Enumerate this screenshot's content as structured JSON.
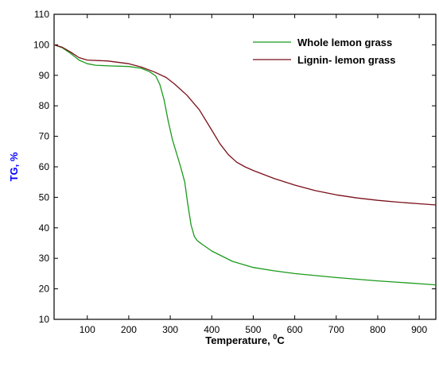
{
  "chart_data": {
    "type": "line",
    "xlabel": "Temperature, ",
    "xlabel_sup": "0",
    "xlabel_unit": "C",
    "ylabel": "TG, %",
    "xlim": [
      20,
      940
    ],
    "ylim": [
      10,
      110
    ],
    "x_ticks": [
      100,
      200,
      300,
      400,
      500,
      600,
      700,
      800,
      900
    ],
    "y_ticks": [
      10,
      20,
      30,
      40,
      50,
      60,
      70,
      80,
      90,
      100,
      110
    ],
    "legend_position": "top-right",
    "grid": false,
    "series": [
      {
        "name": "Whole lemon grass",
        "color": "#1a9a1a",
        "points": [
          [
            20,
            100
          ],
          [
            40,
            99
          ],
          [
            60,
            97.2
          ],
          [
            80,
            95
          ],
          [
            100,
            93.8
          ],
          [
            120,
            93.3
          ],
          [
            150,
            93.1
          ],
          [
            200,
            92.9
          ],
          [
            230,
            92.3
          ],
          [
            250,
            91.2
          ],
          [
            265,
            89.8
          ],
          [
            275,
            87
          ],
          [
            285,
            82
          ],
          [
            295,
            75
          ],
          [
            305,
            69
          ],
          [
            315,
            64.5
          ],
          [
            325,
            60
          ],
          [
            335,
            55
          ],
          [
            342,
            48
          ],
          [
            350,
            41
          ],
          [
            358,
            37.2
          ],
          [
            365,
            35.8
          ],
          [
            375,
            34.8
          ],
          [
            400,
            32.4
          ],
          [
            450,
            29
          ],
          [
            500,
            27
          ],
          [
            550,
            25.9
          ],
          [
            600,
            25
          ],
          [
            700,
            23.7
          ],
          [
            800,
            22.6
          ],
          [
            900,
            21.7
          ],
          [
            940,
            21.3
          ]
        ]
      },
      {
        "name": "Lignin- lemon grass",
        "color": "#7a0f1a",
        "points": [
          [
            20,
            100
          ],
          [
            40,
            99.2
          ],
          [
            60,
            97.6
          ],
          [
            80,
            95.8
          ],
          [
            100,
            95
          ],
          [
            150,
            94.7
          ],
          [
            200,
            93.8
          ],
          [
            230,
            92.7
          ],
          [
            260,
            91.2
          ],
          [
            290,
            89.3
          ],
          [
            310,
            87.2
          ],
          [
            340,
            83.5
          ],
          [
            370,
            78.7
          ],
          [
            400,
            72
          ],
          [
            420,
            67.5
          ],
          [
            440,
            64
          ],
          [
            460,
            61.5
          ],
          [
            480,
            60
          ],
          [
            500,
            58.8
          ],
          [
            550,
            56.2
          ],
          [
            600,
            54
          ],
          [
            650,
            52.2
          ],
          [
            700,
            50.8
          ],
          [
            750,
            49.8
          ],
          [
            800,
            49
          ],
          [
            850,
            48.4
          ],
          [
            900,
            47.9
          ],
          [
            940,
            47.5
          ]
        ]
      }
    ]
  }
}
